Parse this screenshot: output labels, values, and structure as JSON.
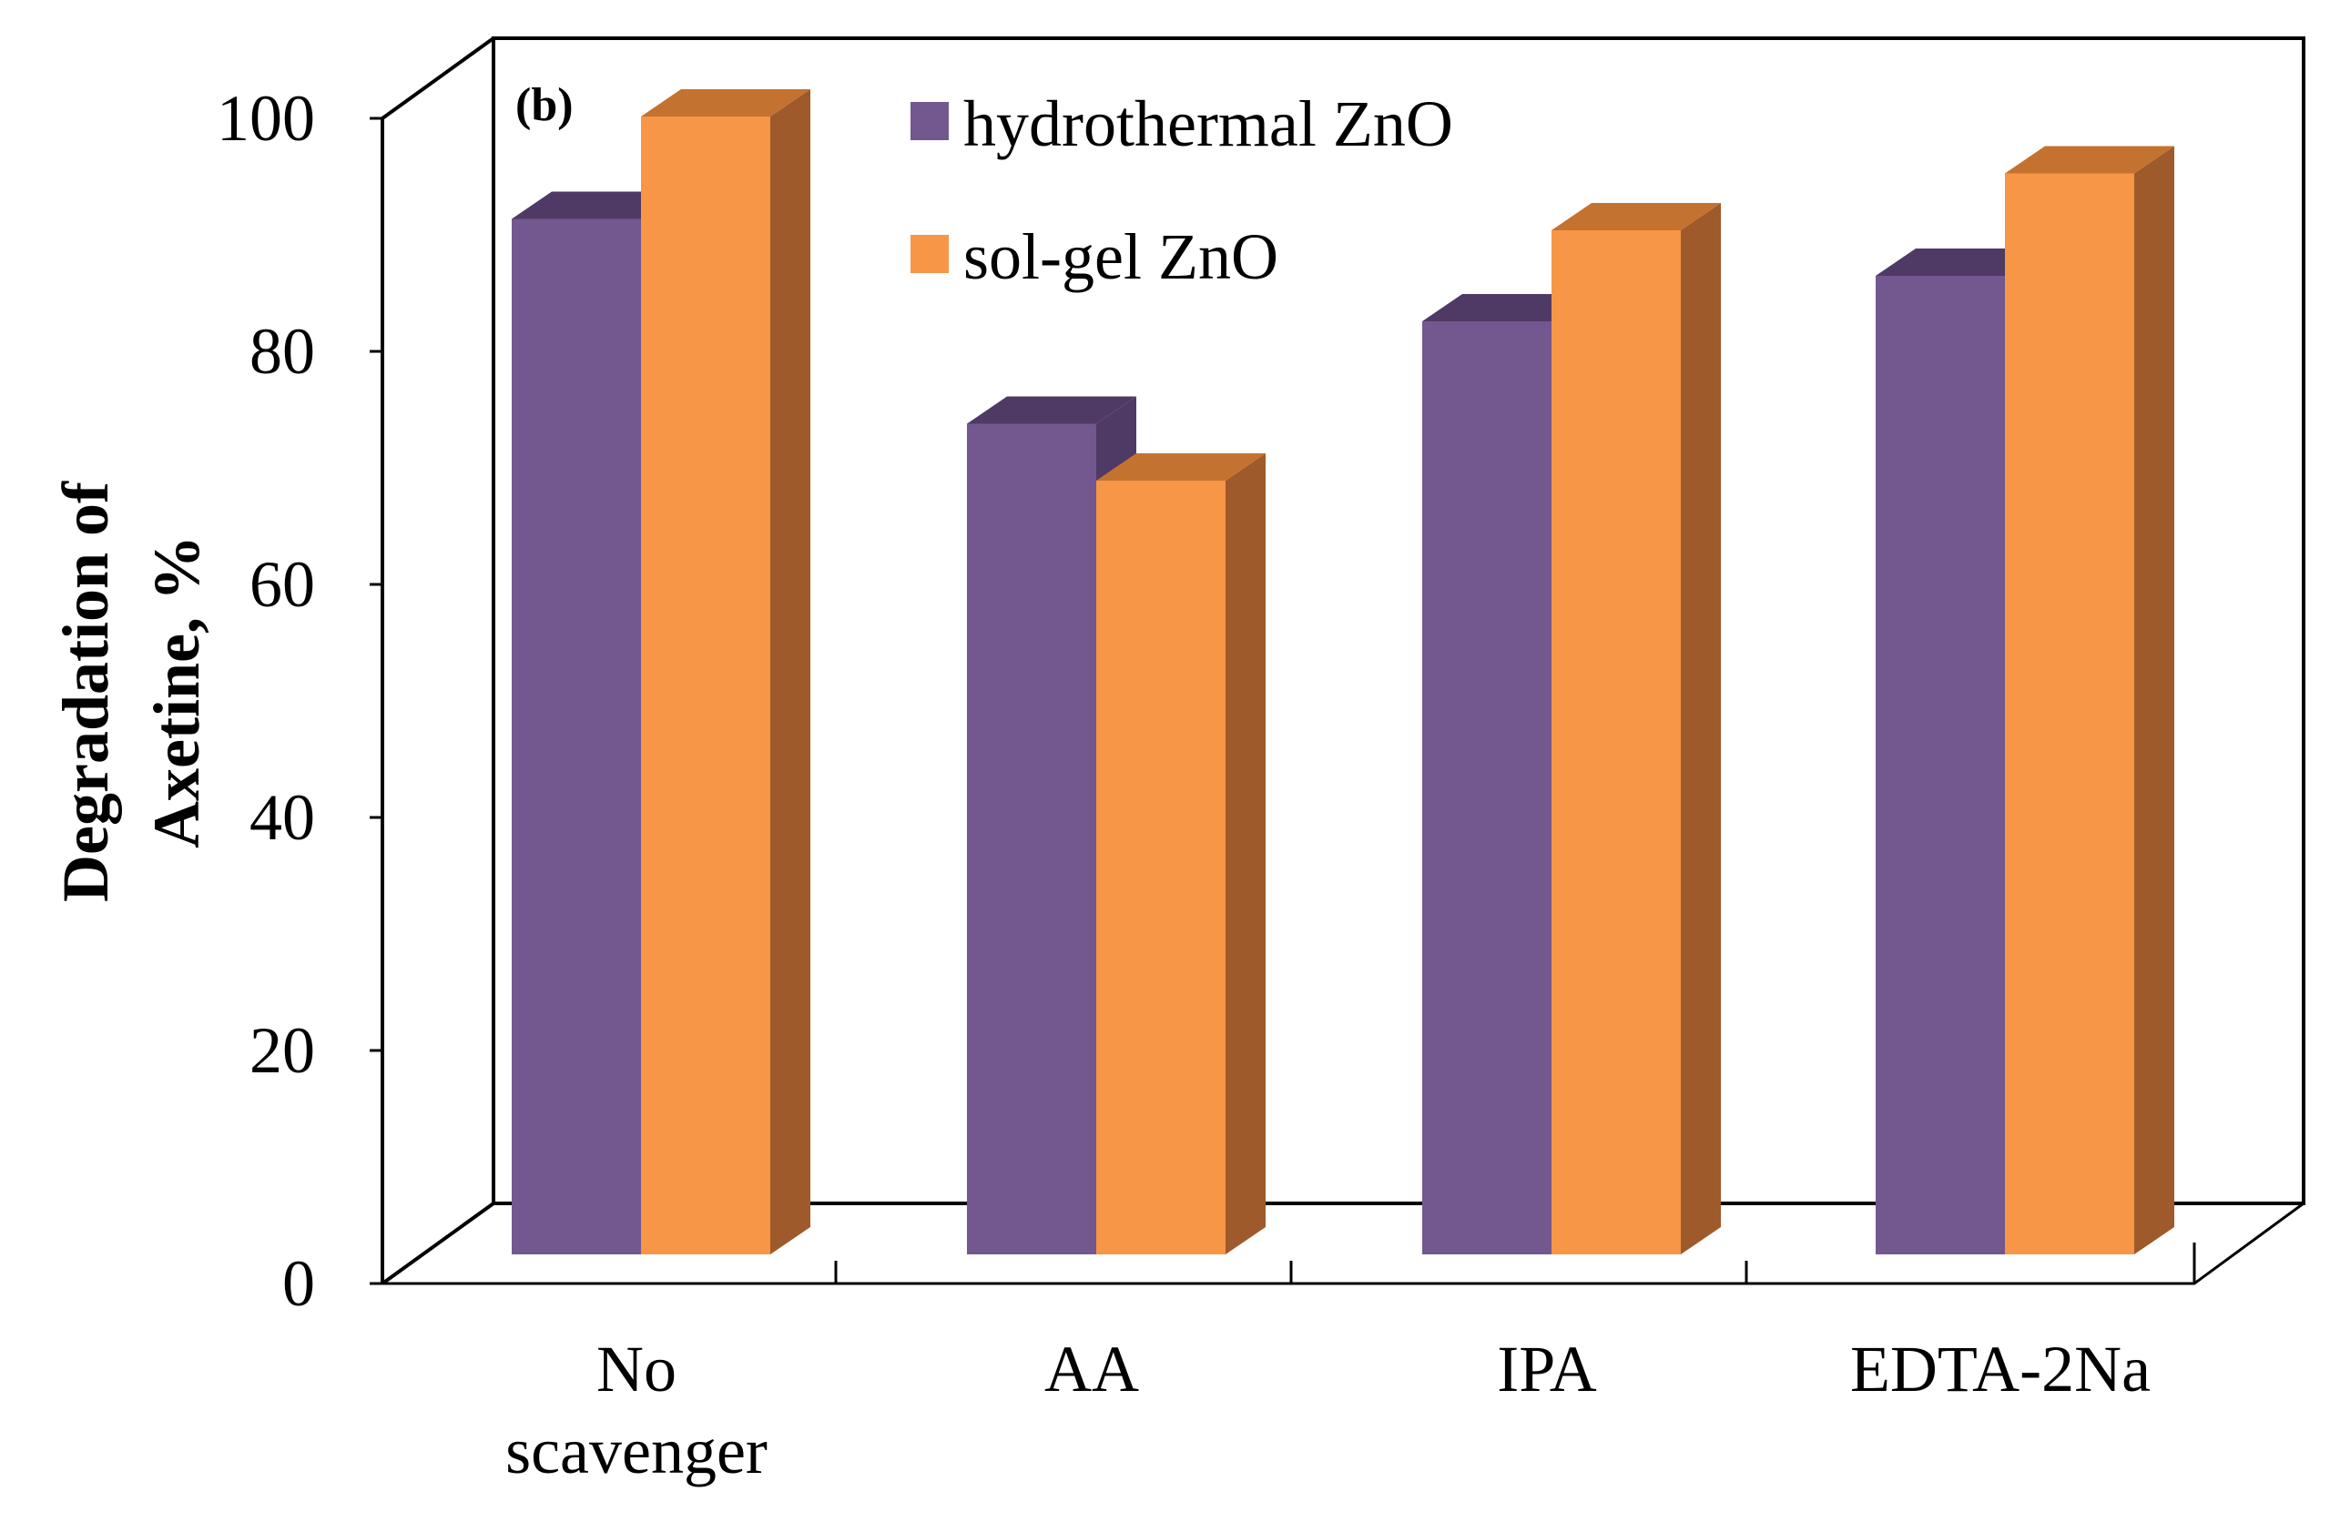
{
  "chart_data": {
    "type": "bar",
    "panel_label": "(b)",
    "title": "",
    "xlabel": "",
    "ylabel_lines": [
      "Degradation of",
      "Axetine, %"
    ],
    "categories": [
      [
        "No",
        "scavenger"
      ],
      [
        "AA"
      ],
      [
        "IPA"
      ],
      [
        "EDTA-2Na"
      ]
    ],
    "series": [
      {
        "name": "hydrothermal ZnO",
        "values": [
          91,
          73,
          82,
          86
        ],
        "color": "#73578F",
        "top_color": "#4F3A66",
        "side_color": "#4F3A66"
      },
      {
        "name": "sol-gel ZnO",
        "values": [
          100,
          68,
          90,
          95
        ],
        "color": "#F79646",
        "top_color": "#C47230",
        "side_color": "#9E5A2A"
      }
    ],
    "yticks": [
      "0",
      "20",
      "40",
      "60",
      "80",
      "100"
    ],
    "ylim": [
      0,
      100
    ],
    "grid": false,
    "legend_position": "top-center"
  }
}
